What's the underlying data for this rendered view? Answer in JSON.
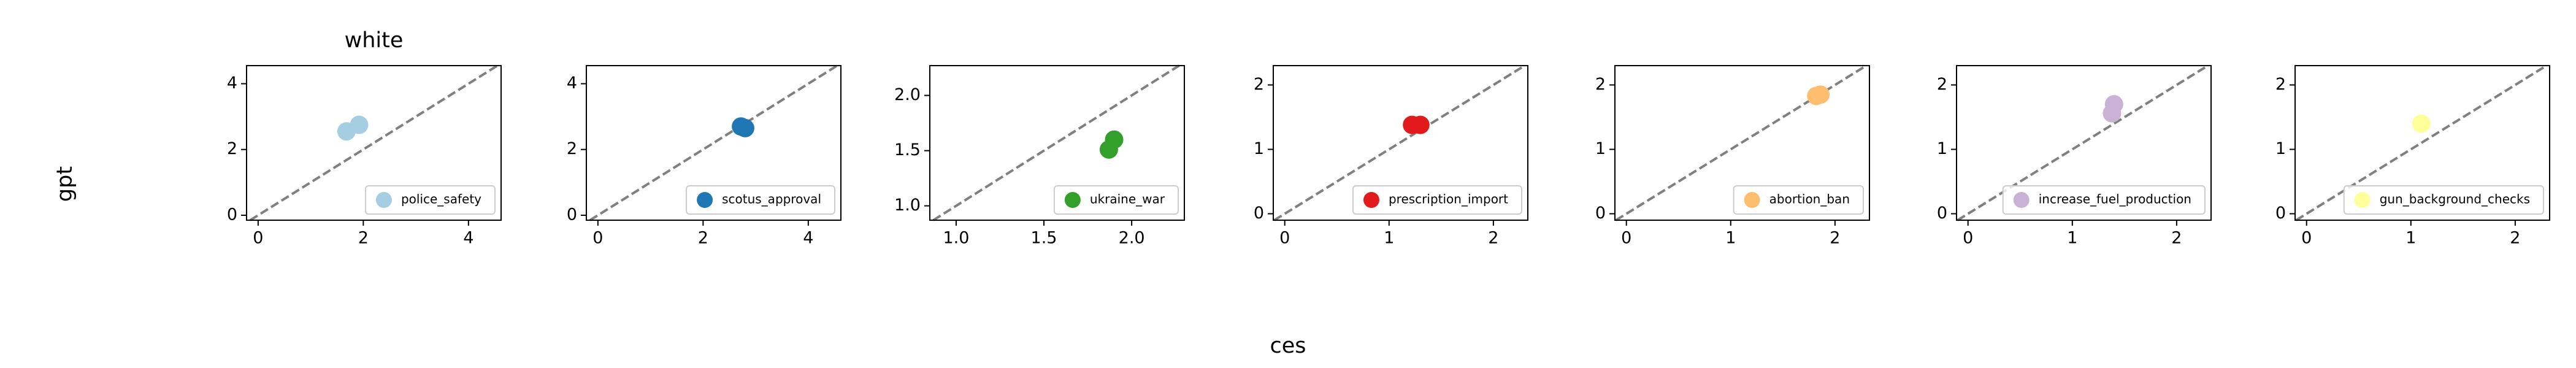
{
  "xlabel": "ces",
  "ylabel": "gpt",
  "chart_data": [
    {
      "type": "scatter",
      "title": "white",
      "xlim": [
        -0.22,
        4.62
      ],
      "ylim": [
        -0.15,
        4.55
      ],
      "xticks": [
        0,
        2,
        4
      ],
      "yticks": [
        0,
        2,
        4
      ],
      "legend": "lower right",
      "series": [
        {
          "name": "police_safety",
          "color": "#a6cee3",
          "x": [
            1.68,
            1.92
          ],
          "y": [
            2.55,
            2.75
          ]
        }
      ]
    },
    {
      "type": "scatter",
      "xlim": [
        -0.22,
        4.62
      ],
      "ylim": [
        -0.15,
        4.55
      ],
      "xticks": [
        0,
        2,
        4
      ],
      "yticks": [
        0,
        2,
        4
      ],
      "legend": "lower right",
      "series": [
        {
          "name": "scotus_approval",
          "color": "#1f78b4",
          "x": [
            2.72,
            2.8
          ],
          "y": [
            2.7,
            2.65
          ]
        }
      ]
    },
    {
      "type": "scatter",
      "xlim": [
        0.85,
        2.3
      ],
      "ylim": [
        0.87,
        2.27
      ],
      "xticks": [
        {
          "value": 1,
          "label": "1.0"
        },
        1.5,
        {
          "value": 2,
          "label": "2.0"
        }
      ],
      "yticks": [
        {
          "value": 1,
          "label": "1.0"
        },
        1.5,
        {
          "value": 2,
          "label": "2.0"
        }
      ],
      "legend": "lower right",
      "series": [
        {
          "name": "ukraine_war",
          "color": "#33a02c",
          "x": [
            1.87,
            1.9
          ],
          "y": [
            1.51,
            1.6
          ]
        }
      ]
    },
    {
      "type": "scatter",
      "xlim": [
        -0.11,
        2.33
      ],
      "ylim": [
        -0.1,
        2.3
      ],
      "xticks": [
        0,
        1,
        2
      ],
      "yticks": [
        0,
        1,
        2
      ],
      "legend": "lower right",
      "series": [
        {
          "name": "prescription_import",
          "color": "#e31a1c",
          "x": [
            1.22,
            1.3
          ],
          "y": [
            1.38,
            1.38
          ]
        }
      ]
    },
    {
      "type": "scatter",
      "xlim": [
        -0.11,
        2.33
      ],
      "ylim": [
        -0.1,
        2.3
      ],
      "xticks": [
        0,
        1,
        2
      ],
      "yticks": [
        0,
        1,
        2
      ],
      "legend": "lower right",
      "series": [
        {
          "name": "abortion_ban",
          "color": "#fdbf6f",
          "x": [
            1.82,
            1.86
          ],
          "y": [
            1.83,
            1.85
          ]
        }
      ]
    },
    {
      "type": "scatter",
      "xlim": [
        -0.11,
        2.33
      ],
      "ylim": [
        -0.1,
        2.3
      ],
      "xticks": [
        0,
        1,
        2
      ],
      "yticks": [
        0,
        1,
        2
      ],
      "legend": "lower right",
      "series": [
        {
          "name": "increase_fuel_production",
          "color": "#cab2d6",
          "x": [
            1.38,
            1.4
          ],
          "y": [
            1.56,
            1.7
          ]
        }
      ]
    },
    {
      "type": "scatter",
      "xlim": [
        -0.11,
        2.33
      ],
      "ylim": [
        -0.1,
        2.3
      ],
      "xticks": [
        0,
        1,
        2
      ],
      "yticks": [
        0,
        1,
        2
      ],
      "legend": "lower right",
      "series": [
        {
          "name": "gun_background_checks",
          "color": "#ffff99",
          "x": [
            1.1
          ],
          "y": [
            1.4
          ]
        }
      ]
    }
  ]
}
